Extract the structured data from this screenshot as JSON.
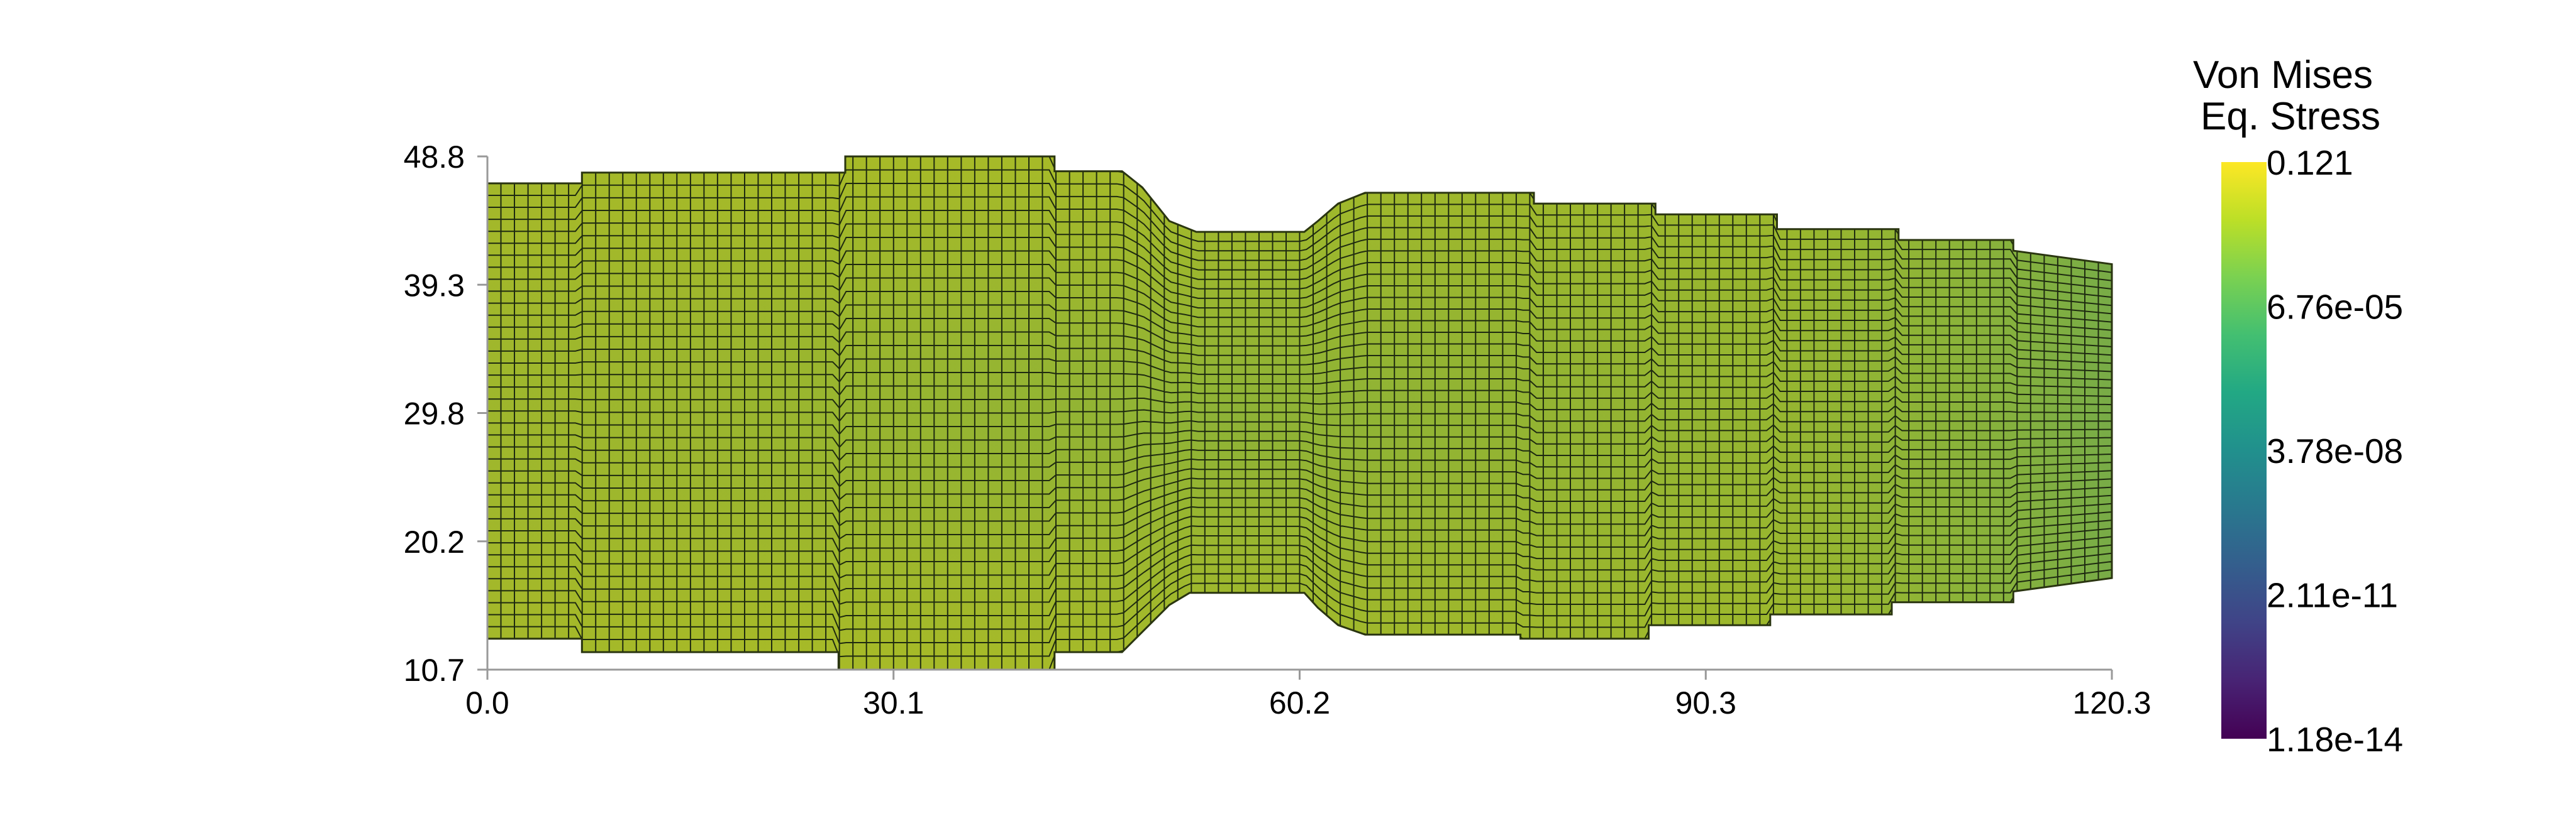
{
  "chart_data": {
    "type": "heatmap",
    "title": "",
    "xlabel": "",
    "ylabel": "",
    "xlim": [
      0.0,
      120.3
    ],
    "ylim": [
      10.7,
      48.8
    ],
    "xticks": [
      "0.0",
      "30.1",
      "60.2",
      "90.3",
      "120.3"
    ],
    "yticks": [
      "10.7",
      "20.2",
      "29.8",
      "39.3",
      "48.8"
    ],
    "grid": false,
    "scalar_field": "Von Mises Eq. Stress",
    "mesh": {
      "x_cells": 120,
      "top_boundary": [
        [
          0.0,
          46.8
        ],
        [
          7.0,
          46.8
        ],
        [
          7.0,
          47.6
        ],
        [
          26.5,
          47.6
        ],
        [
          26.5,
          48.8
        ],
        [
          42.0,
          48.8
        ],
        [
          42.0,
          47.7
        ],
        [
          47.0,
          47.7
        ],
        [
          48.5,
          46.5
        ],
        [
          50.5,
          44.0
        ],
        [
          52.5,
          43.2
        ],
        [
          60.5,
          43.2
        ],
        [
          61.5,
          44.0
        ],
        [
          63.0,
          45.3
        ],
        [
          65.0,
          46.1
        ],
        [
          66.0,
          46.1
        ],
        [
          77.5,
          46.1
        ],
        [
          77.5,
          45.3
        ],
        [
          86.5,
          45.3
        ],
        [
          86.5,
          44.5
        ],
        [
          95.5,
          44.5
        ],
        [
          95.5,
          43.4
        ],
        [
          104.5,
          43.4
        ],
        [
          104.5,
          42.6
        ],
        [
          113.0,
          42.6
        ],
        [
          113.0,
          41.8
        ],
        [
          120.3,
          40.8
        ]
      ],
      "bottom_boundary": [
        [
          0.0,
          13.0
        ],
        [
          7.0,
          13.0
        ],
        [
          7.0,
          12.0
        ],
        [
          26.0,
          12.0
        ],
        [
          26.0,
          10.7
        ],
        [
          42.0,
          10.7
        ],
        [
          42.0,
          12.0
        ],
        [
          47.0,
          12.0
        ],
        [
          48.0,
          13.0
        ],
        [
          50.5,
          15.5
        ],
        [
          52.0,
          16.4
        ],
        [
          60.5,
          16.4
        ],
        [
          61.5,
          15.3
        ],
        [
          63.0,
          14.0
        ],
        [
          65.0,
          13.3
        ],
        [
          76.5,
          13.3
        ],
        [
          76.5,
          13.0
        ],
        [
          86.0,
          13.0
        ],
        [
          86.0,
          14.0
        ],
        [
          95.0,
          14.0
        ],
        [
          95.0,
          14.8
        ],
        [
          104.0,
          14.8
        ],
        [
          104.0,
          15.7
        ],
        [
          113.0,
          15.7
        ],
        [
          113.0,
          16.5
        ],
        [
          120.3,
          17.5
        ]
      ]
    },
    "colorbar": {
      "title": [
        "Von Mises",
        "Eq. Stress"
      ],
      "labels": [
        "0.121",
        "6.76e-05",
        "3.78e-08",
        "2.11e-11",
        "1.18e-14"
      ],
      "colormap": "viridis",
      "scale": "log",
      "placement": "right"
    }
  }
}
